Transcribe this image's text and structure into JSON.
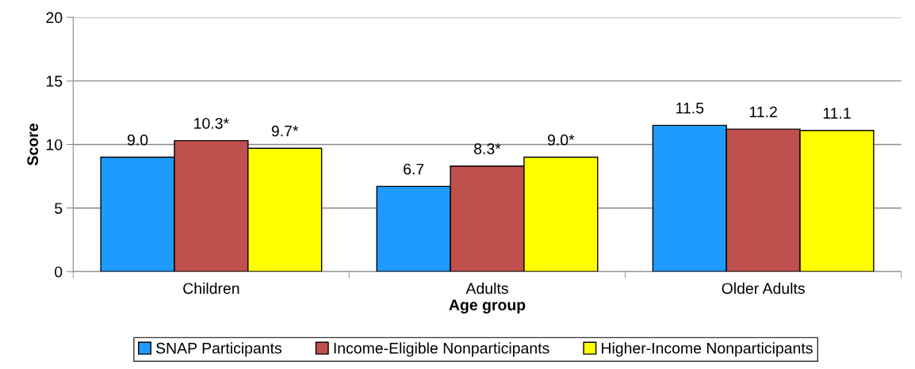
{
  "chart_data": {
    "type": "bar",
    "xlabel": "Age group",
    "ylabel": "Score",
    "categories": [
      "Children",
      "Adults",
      "Older Adults"
    ],
    "series": [
      {
        "name": "SNAP Participants",
        "color": "#1f9bff",
        "values": [
          9.0,
          6.7,
          11.5
        ],
        "value_labels": [
          "9.0",
          "6.7",
          "11.5"
        ]
      },
      {
        "name": "Income-Eligible Nonparticipants",
        "color": "#c0504d",
        "values": [
          10.3,
          8.3,
          11.2
        ],
        "value_labels": [
          "10.3*",
          "8.3*",
          "11.2"
        ]
      },
      {
        "name": "Higher-Income Nonparticipants",
        "color": "#ffff00",
        "values": [
          9.7,
          9.0,
          11.1
        ],
        "value_labels": [
          "9.7*",
          "9.0*",
          "11.1"
        ]
      }
    ],
    "ylim": [
      0,
      20
    ],
    "yticks": [
      0,
      5,
      10,
      15,
      20
    ],
    "grid": "y",
    "legend": "bottom"
  }
}
